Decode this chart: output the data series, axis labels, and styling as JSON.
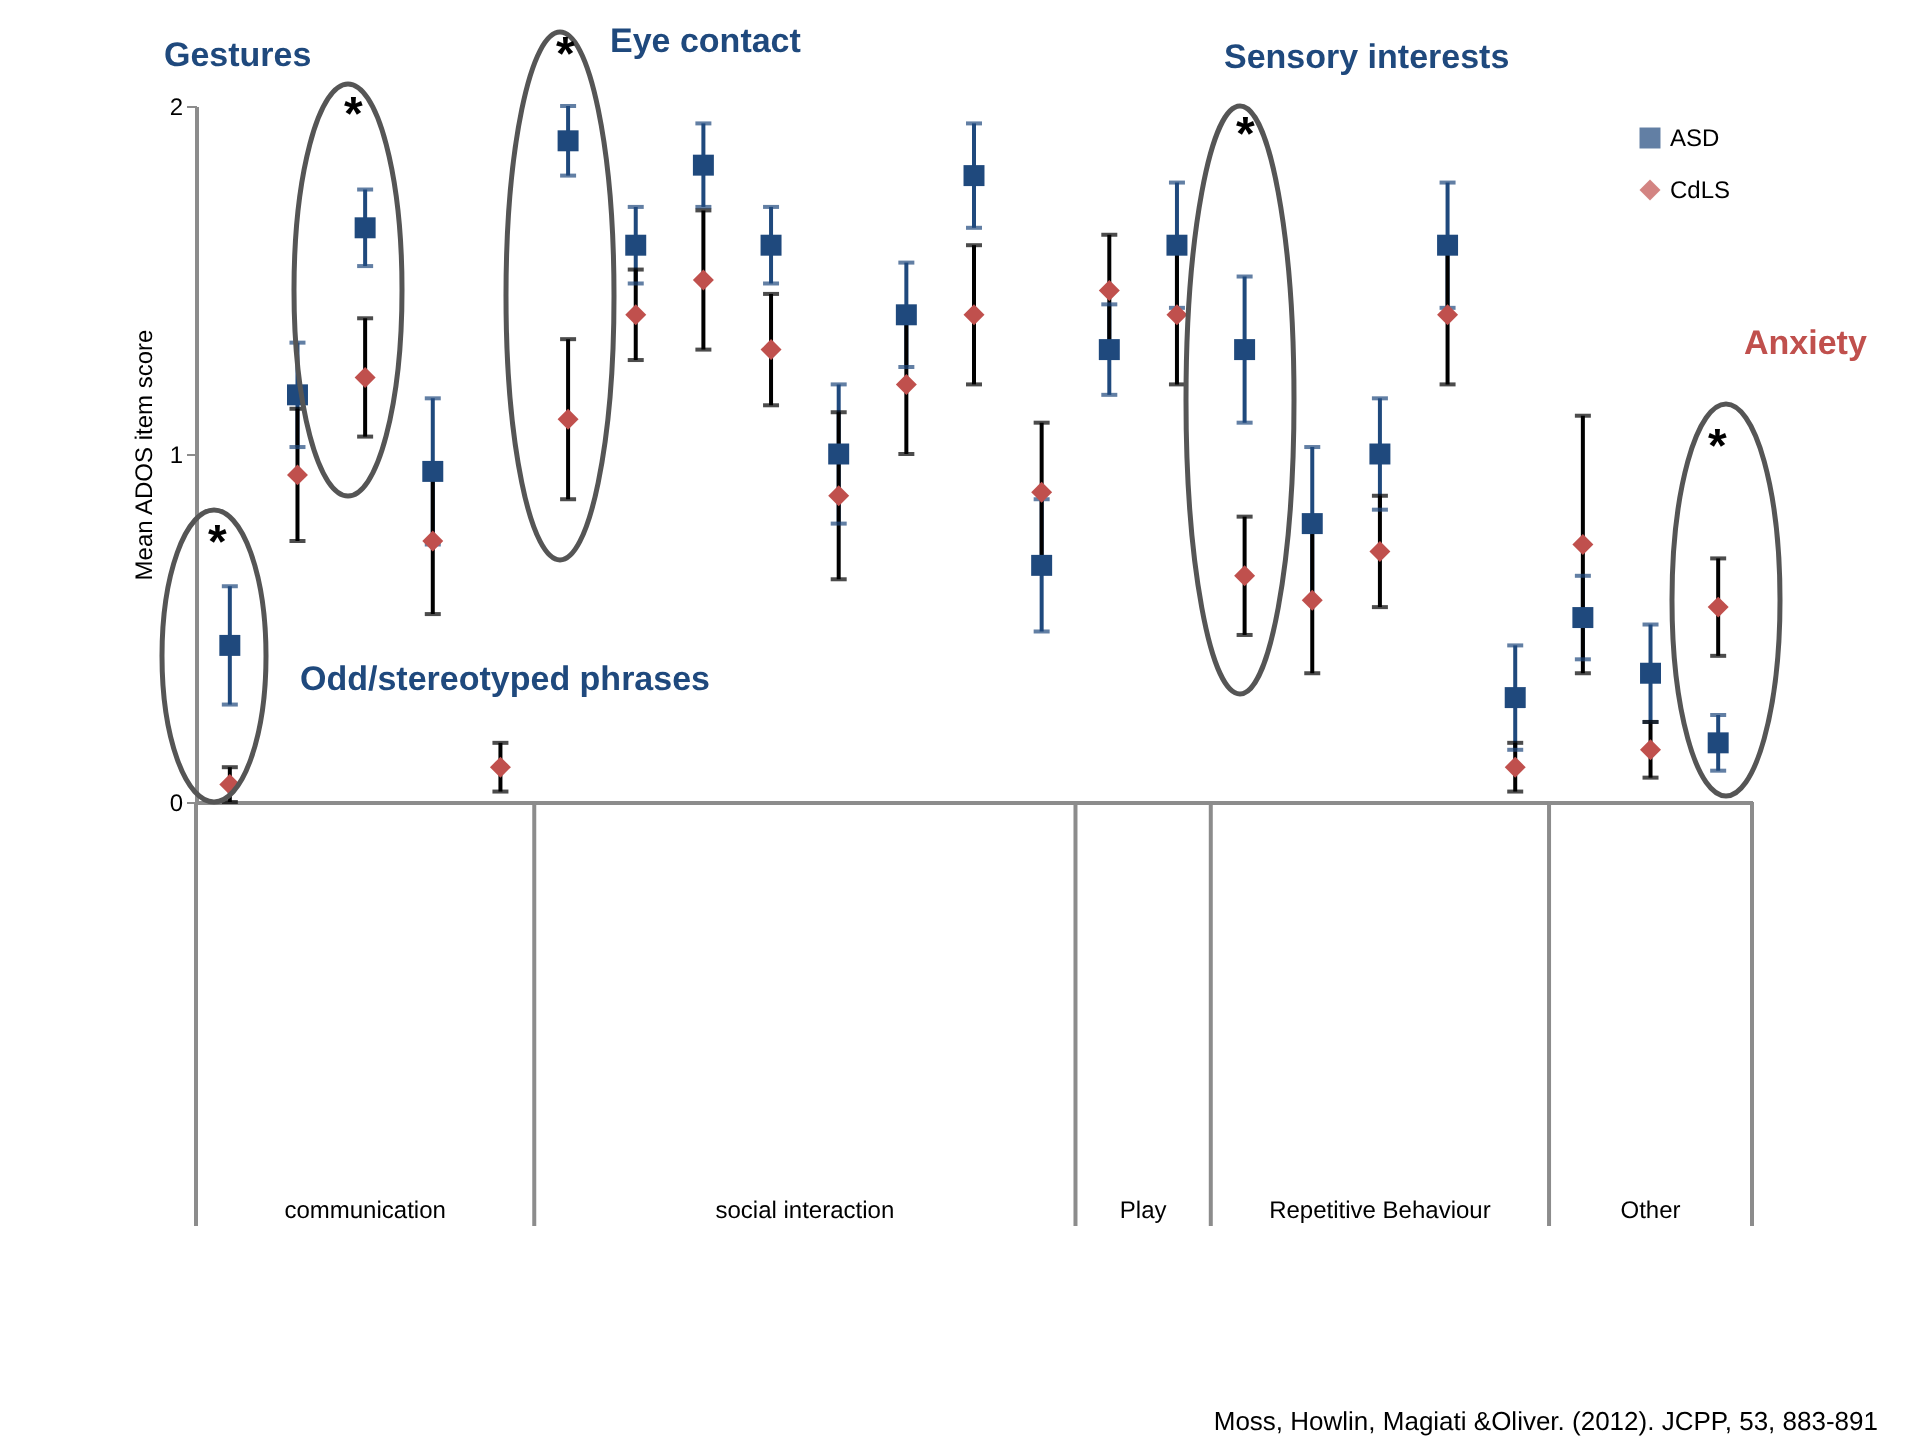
{
  "chart_data": {
    "type": "scatter",
    "ylabel": "Mean ADOS item score",
    "categories": [
      null,
      null,
      null,
      null,
      null,
      null,
      null,
      null,
      null,
      null,
      null,
      null,
      null,
      null,
      null,
      null,
      null,
      null,
      null,
      null,
      null,
      null,
      null
    ],
    "series": [
      {
        "name": "ASD",
        "color": "#1f497d",
        "marker": "square",
        "values": [
          0.45,
          1.17,
          1.65,
          0.95,
          null,
          1.9,
          1.6,
          1.83,
          1.6,
          1.0,
          1.4,
          1.8,
          0.68,
          1.3,
          1.6,
          1.3,
          0.8,
          1.0,
          1.6,
          0.3,
          0.53,
          0.37,
          0.17
        ],
        "errors": [
          0.17,
          0.15,
          0.11,
          0.21,
          null,
          0.1,
          0.11,
          0.12,
          0.11,
          0.2,
          0.15,
          0.15,
          0.19,
          0.13,
          0.18,
          0.21,
          0.22,
          0.16,
          0.18,
          0.15,
          0.12,
          0.14,
          0.08
        ]
      },
      {
        "name": "CdLS",
        "color": "#c0504d",
        "marker": "diamond",
        "values": [
          0.05,
          0.94,
          1.22,
          0.75,
          0.1,
          1.1,
          1.4,
          1.5,
          1.3,
          0.88,
          1.2,
          1.4,
          0.89,
          1.47,
          1.4,
          0.65,
          0.58,
          0.72,
          1.4,
          0.1,
          0.74,
          0.15,
          0.56
        ],
        "errors": [
          0.05,
          0.19,
          0.17,
          0.21,
          0.07,
          0.23,
          0.13,
          0.2,
          0.16,
          0.24,
          0.2,
          0.2,
          0.2,
          0.16,
          0.2,
          0.17,
          0.21,
          0.16,
          0.2,
          0.07,
          0.37,
          0.08,
          0.14
        ]
      }
    ],
    "ylim": [
      0,
      2
    ],
    "yticks": [
      0,
      1,
      2
    ],
    "legend": "top right",
    "annotations": [
      "Gestures",
      "Eye contact",
      "Sensory interests",
      "Odd/stereotyped phrases",
      "Anxiety",
      "*",
      "*",
      "*",
      "*",
      "*",
      "communication",
      "social interaction",
      "Play",
      "Repetitive Behaviour",
      "Other",
      "Moss, Howlin, Magiati &Oliver. (2012). JCPP, 53, 883-891"
    ]
  }
}
